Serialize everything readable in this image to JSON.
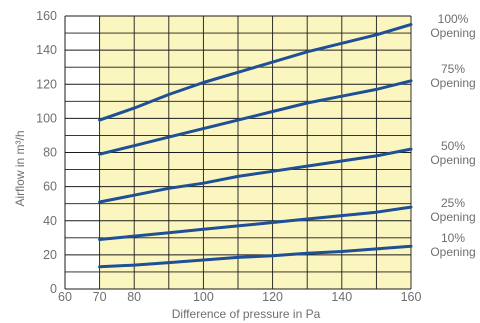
{
  "chart_data": {
    "type": "line",
    "xlabel": "Difference of pressure in Pa",
    "ylabel": "Airflow in m³/h",
    "xlim": [
      60,
      160
    ],
    "ylim": [
      0,
      160
    ],
    "shaded_x_range": [
      70,
      160
    ],
    "x_ticks": [
      60,
      70,
      80,
      100,
      120,
      140,
      160
    ],
    "y_ticks": [
      0,
      20,
      40,
      60,
      80,
      100,
      120,
      140,
      160
    ],
    "grid": true,
    "colors": {
      "line": "#1f4f95",
      "shade": "#fbf6bf",
      "grid": "#1b1b1b",
      "text": "#6f6f6f"
    },
    "series": [
      {
        "name": "100% Opening",
        "label_lines": [
          "100%",
          "Opening"
        ],
        "x": [
          70,
          80,
          90,
          100,
          110,
          120,
          130,
          140,
          150,
          160
        ],
        "values": [
          99,
          106,
          114,
          121,
          127,
          133,
          139,
          144,
          149,
          155
        ]
      },
      {
        "name": "75% Opening",
        "label_lines": [
          "75%",
          "Opening"
        ],
        "x": [
          70,
          80,
          90,
          100,
          110,
          120,
          130,
          140,
          150,
          160
        ],
        "values": [
          79,
          84,
          89,
          94,
          99,
          104,
          109,
          113,
          117,
          122
        ]
      },
      {
        "name": "50% Opening",
        "label_lines": [
          "50%",
          "Opening"
        ],
        "x": [
          70,
          80,
          90,
          100,
          110,
          120,
          130,
          140,
          150,
          160
        ],
        "values": [
          51,
          55,
          59,
          62,
          66,
          69,
          72,
          75,
          78,
          82
        ]
      },
      {
        "name": "25% Opening",
        "label_lines": [
          "25%",
          "Opening"
        ],
        "x": [
          70,
          80,
          90,
          100,
          110,
          120,
          130,
          140,
          150,
          160
        ],
        "values": [
          29,
          31,
          33,
          35,
          37,
          39,
          41,
          43,
          45,
          48
        ]
      },
      {
        "name": "10% Opening",
        "label_lines": [
          "10%",
          "Opening"
        ],
        "x": [
          70,
          80,
          90,
          100,
          110,
          120,
          130,
          140,
          150,
          160
        ],
        "values": [
          13,
          14,
          15.5,
          17,
          18.5,
          19.5,
          21,
          22,
          23.5,
          25
        ]
      }
    ]
  }
}
